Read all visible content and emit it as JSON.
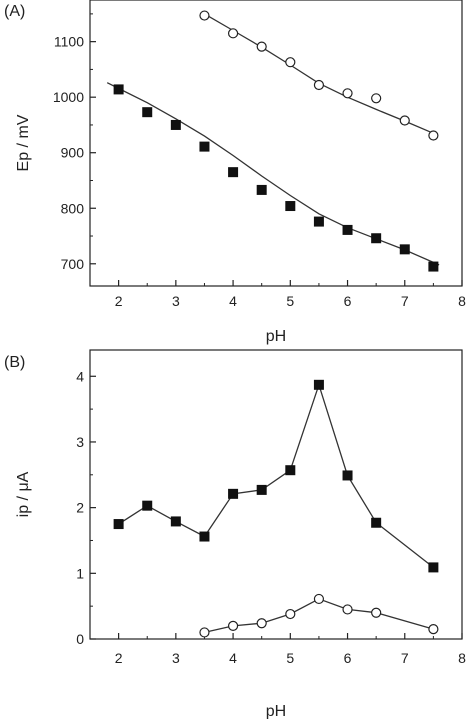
{
  "chart_data": [
    {
      "type": "scatter",
      "panel_label": "(A)",
      "title": "",
      "xlabel": "pH",
      "ylabel": "Ep / mV",
      "xlim": [
        1.5,
        8
      ],
      "ylim": [
        660,
        1175
      ],
      "xticks": [
        2,
        3,
        4,
        5,
        6,
        7,
        8
      ],
      "yticks": [
        700,
        800,
        900,
        1000,
        1100
      ],
      "grid": false,
      "legend": "none",
      "series": [
        {
          "marker": "filled-square",
          "x": [
            2,
            2.5,
            3,
            3.5,
            4,
            4.5,
            5,
            5.5,
            6,
            6.5,
            7,
            7.5
          ],
          "y": [
            1014,
            973,
            950,
            911,
            865,
            833,
            804,
            776,
            761,
            746,
            726,
            695
          ],
          "fit_line": {
            "x": [
              1.8,
              2.5,
              3,
              3.5,
              4,
              4.5,
              5,
              5.5,
              6,
              6.5,
              7,
              7.6
            ],
            "y": [
              1026,
              990,
              961,
              930,
              895,
              858,
              823,
              790,
              765,
              745,
              725,
              698
            ]
          }
        },
        {
          "marker": "open-circle",
          "x": [
            3.5,
            4,
            4.5,
            5,
            5.5,
            6,
            6.5,
            7,
            7.5
          ],
          "y": [
            1147,
            1115,
            1091,
            1063,
            1022,
            1007,
            998,
            958,
            931
          ],
          "fit_line": {
            "x": [
              3.5,
              4,
              4.5,
              5,
              5.5,
              6,
              6.5,
              7,
              7.5
            ],
            "y": [
              1150,
              1120,
              1090,
              1058,
              1025,
              1000,
              978,
              957,
              935
            ]
          }
        }
      ]
    },
    {
      "type": "line",
      "panel_label": "(B)",
      "title": "",
      "xlabel": "pH",
      "ylabel": "ip / μA",
      "xlim": [
        1.5,
        8
      ],
      "ylim": [
        0,
        4.4
      ],
      "xticks": [
        2,
        3,
        4,
        5,
        6,
        7,
        8
      ],
      "yticks": [
        0,
        1,
        2,
        3,
        4
      ],
      "grid": false,
      "legend": "none",
      "series": [
        {
          "marker": "filled-square",
          "x": [
            2,
            2.5,
            3,
            3.5,
            4,
            4.5,
            5,
            5.5,
            6,
            6.5,
            7.5
          ],
          "y": [
            1.75,
            2.03,
            1.79,
            1.56,
            2.21,
            2.27,
            2.57,
            3.87,
            2.49,
            1.77,
            1.09
          ]
        },
        {
          "marker": "open-circle",
          "x": [
            3.5,
            4,
            4.5,
            5,
            5.5,
            6,
            6.5,
            7.5
          ],
          "y": [
            0.1,
            0.2,
            0.24,
            0.38,
            0.61,
            0.45,
            0.4,
            0.15
          ]
        }
      ]
    }
  ]
}
